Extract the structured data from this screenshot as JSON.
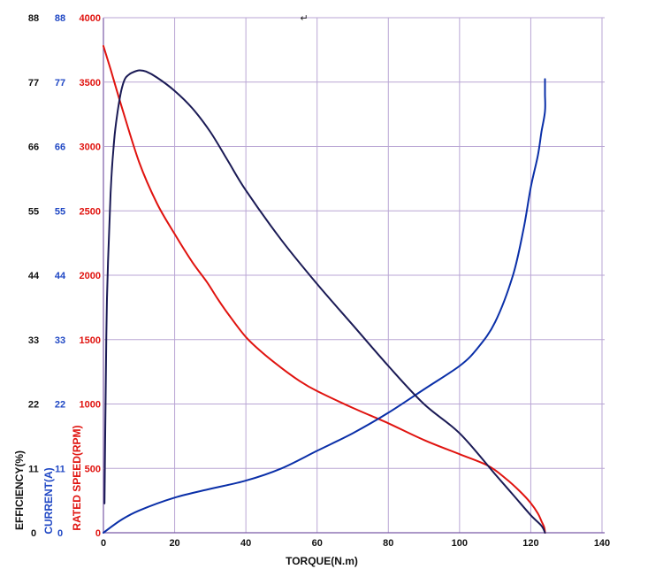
{
  "chart_data": {
    "type": "line",
    "xlabel": "TORQUE(N.m)",
    "x_ticks": [
      "0",
      "20",
      "40",
      "60",
      "80",
      "100",
      "120",
      "140"
    ],
    "xlim": [
      0,
      140
    ],
    "speed_axis": {
      "label": "RATED SPEED(RPM)",
      "ticks": [
        "0",
        "500",
        "1000",
        "1500",
        "2000",
        "2500",
        "3000",
        "3500",
        "4000"
      ],
      "ylim": [
        0,
        4000
      ]
    },
    "current_axis": {
      "label": "CURRENT(A)",
      "ticks": [
        "0",
        "11",
        "22",
        "33",
        "44",
        "55",
        "66",
        "77",
        "88"
      ],
      "ylim": [
        0,
        88
      ]
    },
    "efficiency_axis": {
      "label": "EFFICIENCY(%)",
      "ticks": [
        "0",
        "11",
        "22",
        "33",
        "44",
        "55",
        "66",
        "77",
        "88"
      ],
      "ylim": [
        0,
        88
      ]
    },
    "grid": true,
    "symbol": "↵",
    "series": [
      {
        "key": "speed",
        "axis": "speed",
        "color": "#e0130f",
        "x": [
          0,
          2,
          5,
          10,
          15,
          20,
          25,
          29,
          32,
          35,
          40,
          45,
          50,
          55,
          60,
          70,
          80,
          90,
          100,
          108,
          113,
          117,
          120,
          122,
          123,
          123.8,
          124
        ],
        "y": [
          3780,
          3600,
          3320,
          2880,
          2560,
          2320,
          2100,
          1950,
          1820,
          1700,
          1520,
          1390,
          1280,
          1180,
          1100,
          970,
          850,
          720,
          610,
          520,
          420,
          320,
          230,
          150,
          90,
          40,
          0
        ]
      },
      {
        "key": "current",
        "axis": "current",
        "color": "#0a2fa8",
        "x": [
          0,
          5,
          10,
          20,
          30,
          40,
          50,
          60,
          70,
          80,
          90,
          100,
          105,
          110,
          115,
          118,
          120,
          122,
          123,
          124,
          124,
          124
        ],
        "y": [
          0,
          2.2,
          3.8,
          6.0,
          7.5,
          8.9,
          11.0,
          14.0,
          17.0,
          20.5,
          24.5,
          28.5,
          31.5,
          36.0,
          44.0,
          52.0,
          59.0,
          64.5,
          68.5,
          72.0,
          75.0,
          77.5
        ]
      },
      {
        "key": "efficiency",
        "axis": "efficiency",
        "color": "#1a1a55",
        "x": [
          0.3,
          0.6,
          1,
          2,
          3,
          4,
          5,
          6,
          7,
          8,
          10,
          12,
          15,
          20,
          25,
          30,
          35,
          40,
          50,
          60,
          70,
          80,
          90,
          100,
          110,
          115,
          120,
          123,
          124
        ],
        "y": [
          5,
          22,
          40,
          58,
          67,
          72,
          75.5,
          77.5,
          78.2,
          78.6,
          79,
          78.8,
          77.8,
          75.5,
          72.5,
          68.5,
          63.5,
          58.5,
          50,
          42.5,
          35.5,
          28.5,
          22,
          17,
          10,
          6.5,
          3,
          1.2,
          0
        ]
      }
    ]
  }
}
